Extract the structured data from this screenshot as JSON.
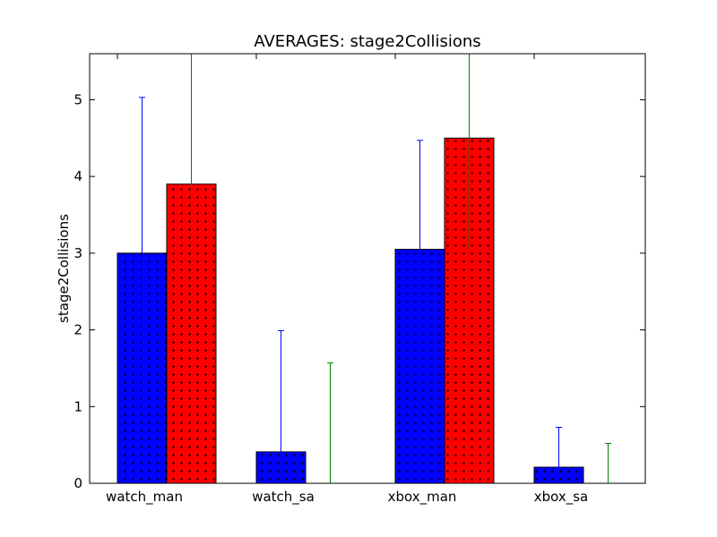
{
  "chart_data": {
    "type": "bar",
    "title": "AVERAGES: stage2Collisions",
    "xlabel": "",
    "ylabel": "stage2Collisions",
    "categories": [
      "watch_man",
      "watch_sa",
      "xbox_man",
      "xbox_sa"
    ],
    "ylim": [
      0,
      5.6
    ],
    "yticks": [
      0,
      1,
      2,
      3,
      4,
      5
    ],
    "grid": false,
    "series": [
      {
        "color": "#0000ff",
        "error_color": "#0000ff",
        "hatch": "dots",
        "values": [
          3.0,
          0.41,
          3.05,
          0.21
        ],
        "errors": [
          2.03,
          1.58,
          1.42,
          0.52
        ]
      },
      {
        "color": "#ff0000",
        "error_color": "#008000",
        "hatch": "dots",
        "values": [
          3.9,
          0.0,
          4.5,
          0.0
        ],
        "errors": [
          2.1,
          1.57,
          1.45,
          0.52
        ]
      }
    ]
  }
}
